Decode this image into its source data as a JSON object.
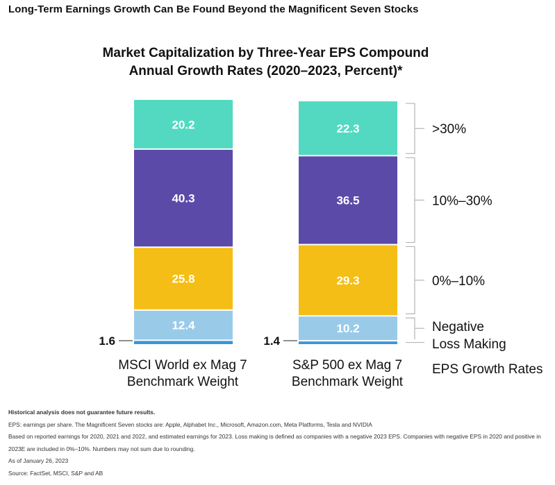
{
  "header": {
    "title": "Long-Term Earnings Growth Can Be Found Beyond the Magnificent Seven Stocks"
  },
  "chart_data": {
    "type": "bar",
    "stacked": true,
    "title_line1": "Market Capitalization by Three-Year EPS Compound",
    "title_line2": "Annual Growth Rates (2020–2023, Percent)*",
    "categories": [
      {
        "line1": "MSCI World ex Mag 7",
        "line2": "Benchmark Weight"
      },
      {
        "line1": "S&P 500 ex Mag 7",
        "line2": "Benchmark Weight"
      }
    ],
    "series": [
      {
        "name": "Loss Making",
        "values": [
          1.6,
          1.4
        ],
        "color": "#3b95d9",
        "labels": [
          "1.6",
          "1.4"
        ]
      },
      {
        "name": "Negative",
        "values": [
          12.4,
          10.2
        ],
        "color": "#99cbe9",
        "labels": [
          "12.4",
          "10.2"
        ]
      },
      {
        "name": "0%–10%",
        "values": [
          25.8,
          29.3
        ],
        "color": "#f5be16",
        "labels": [
          "25.8",
          "29.3"
        ]
      },
      {
        "name": "10%–30%",
        "values": [
          40.3,
          36.5
        ],
        "color": "#5b4aa8",
        "labels": [
          "40.3",
          "36.5"
        ]
      },
      {
        "name": ">30%",
        "values": [
          20.2,
          22.3
        ],
        "color": "#53d9c1",
        "labels": [
          "20.2",
          "22.3"
        ]
      }
    ],
    "legend_title": "EPS Growth Rates",
    "ylim": [
      0,
      100
    ]
  },
  "footer": {
    "disclaimer": "Historical analysis does not guarantee future results.",
    "note1": "EPS: earnings per share. The Magnificent Seven stocks are: Apple, Alphabet Inc., Microsoft, Amazon.com, Meta Platforms, Tesla and NVIDIA",
    "note2": "Based on reported earnings for 2020, 2021 and 2022, and estimated earnings for 2023. Loss making is defined as companies with a negative 2023 EPS. Companies with negative EPS in 2020 and positive in 2023E are included in 0%–10%. Numbers may not sum due to rounding.",
    "date": "As of January 26, 2023",
    "source": "Source: FactSet, MSCI, S&P and AB"
  }
}
